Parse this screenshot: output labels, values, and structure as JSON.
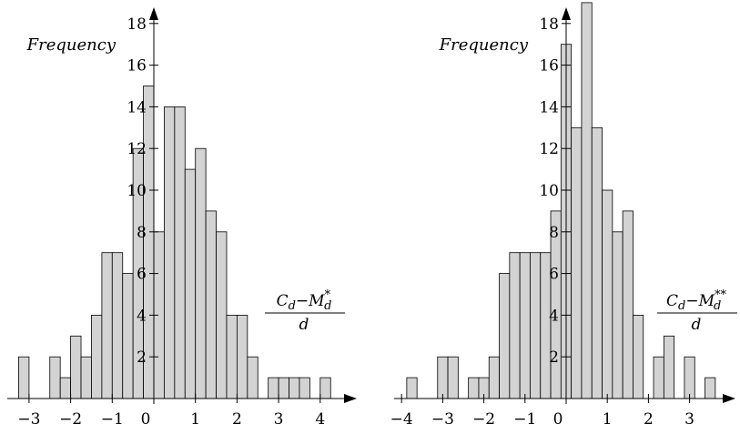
{
  "chart_data": [
    {
      "type": "bar",
      "ylabel": "Frequency",
      "xlabel": {
        "numerator": "C_d−M_d^*",
        "denominator": "d"
      },
      "bin_width": 0.25,
      "x_range": [
        -3.25,
        4.5
      ],
      "y_range": [
        0,
        19
      ],
      "x_ticks": [
        "−3",
        "−2",
        "−1",
        "0",
        "1",
        "2",
        "3",
        "4"
      ],
      "y_ticks": [
        "2",
        "4",
        "6",
        "8",
        "10",
        "12",
        "14",
        "16",
        "18"
      ],
      "bins": [
        {
          "x": -3.125,
          "value": 2
        },
        {
          "x": -2.375,
          "value": 2
        },
        {
          "x": -2.125,
          "value": 1
        },
        {
          "x": -1.875,
          "value": 3
        },
        {
          "x": -1.625,
          "value": 2
        },
        {
          "x": -1.375,
          "value": 4
        },
        {
          "x": -1.125,
          "value": 7
        },
        {
          "x": -0.875,
          "value": 7
        },
        {
          "x": -0.625,
          "value": 6
        },
        {
          "x": -0.375,
          "value": 12
        },
        {
          "x": -0.125,
          "value": 15
        },
        {
          "x": 0.125,
          "value": 8
        },
        {
          "x": 0.375,
          "value": 14
        },
        {
          "x": 0.625,
          "value": 14
        },
        {
          "x": 0.875,
          "value": 11
        },
        {
          "x": 1.125,
          "value": 12
        },
        {
          "x": 1.375,
          "value": 9
        },
        {
          "x": 1.625,
          "value": 8
        },
        {
          "x": 1.875,
          "value": 4
        },
        {
          "x": 2.125,
          "value": 4
        },
        {
          "x": 2.375,
          "value": 2
        },
        {
          "x": 2.875,
          "value": 1
        },
        {
          "x": 3.125,
          "value": 1
        },
        {
          "x": 3.375,
          "value": 1
        },
        {
          "x": 3.625,
          "value": 1
        },
        {
          "x": 4.125,
          "value": 1
        }
      ]
    },
    {
      "type": "bar",
      "ylabel": "Frequency",
      "xlabel": {
        "numerator": "C_d−M_d^**",
        "denominator": "d"
      },
      "bin_width": 0.25,
      "x_range": [
        -4.0,
        3.8
      ],
      "y_range": [
        0,
        19
      ],
      "x_ticks": [
        "−4",
        "−3",
        "−2",
        "−1",
        "0",
        "1",
        "2",
        "3"
      ],
      "y_ticks": [
        "2",
        "4",
        "6",
        "8",
        "10",
        "12",
        "14",
        "16",
        "18"
      ],
      "bins": [
        {
          "x": -3.75,
          "value": 1
        },
        {
          "x": -3.0,
          "value": 2
        },
        {
          "x": -2.75,
          "value": 2
        },
        {
          "x": -2.25,
          "value": 1
        },
        {
          "x": -2.0,
          "value": 1
        },
        {
          "x": -1.75,
          "value": 2
        },
        {
          "x": -1.5,
          "value": 6
        },
        {
          "x": -1.25,
          "value": 7
        },
        {
          "x": -1.0,
          "value": 7
        },
        {
          "x": -0.75,
          "value": 7
        },
        {
          "x": -0.5,
          "value": 7
        },
        {
          "x": -0.25,
          "value": 9
        },
        {
          "x": 0.0,
          "value": 17
        },
        {
          "x": 0.25,
          "value": 13
        },
        {
          "x": 0.5,
          "value": 19
        },
        {
          "x": 0.75,
          "value": 13
        },
        {
          "x": 1.0,
          "value": 10
        },
        {
          "x": 1.25,
          "value": 8
        },
        {
          "x": 1.5,
          "value": 9
        },
        {
          "x": 1.75,
          "value": 4
        },
        {
          "x": 2.25,
          "value": 2
        },
        {
          "x": 2.5,
          "value": 3
        },
        {
          "x": 3.0,
          "value": 2
        },
        {
          "x": 3.5,
          "value": 1
        }
      ]
    }
  ]
}
